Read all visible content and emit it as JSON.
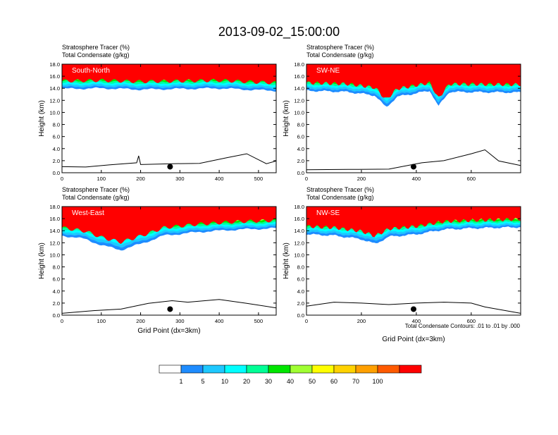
{
  "title": "2013-09-02_15:00:00",
  "colors": {
    "fill": [
      "#ffffff",
      "#1e8cff",
      "#1ec8ff",
      "#00ffff",
      "#00ff96",
      "#00e600",
      "#a0ff32",
      "#ffff00",
      "#ffd200",
      "#ffa000",
      "#ff5a00",
      "#ff0000"
    ]
  },
  "colorbar": {
    "labels": [
      "1",
      "5",
      "10",
      "20",
      "30",
      "40",
      "50",
      "60",
      "70",
      "100"
    ]
  },
  "contour_note": "Total Condensate Contours: .01 to .01 by .000",
  "chart_data": [
    {
      "type": "heatmap",
      "panel": "South-North",
      "label": "South-North",
      "title_line1": "Stratosphere Tracer   (%)",
      "title_line2": "Total Condensate   (g/kg)",
      "ylabel": "Height (km)",
      "xlabel": "",
      "xlim": [
        0,
        545
      ],
      "ylim": [
        0,
        18
      ],
      "xticks": [
        0,
        100,
        200,
        300,
        400,
        500
      ],
      "yticks": [
        "0.0",
        "2.0",
        "4.0",
        "6.0",
        "8.0",
        "10.0",
        "12.0",
        "14.0",
        "16.0",
        "18.0"
      ],
      "tracer_base_km": [
        [
          0,
          13.9
        ],
        [
          100,
          14.0
        ],
        [
          200,
          13.8
        ],
        [
          300,
          13.9
        ],
        [
          400,
          14.0
        ],
        [
          500,
          13.7
        ],
        [
          545,
          13.6
        ]
      ],
      "terrain_km": [
        [
          0,
          1.0
        ],
        [
          60,
          0.8
        ],
        [
          120,
          1.3
        ],
        [
          190,
          1.5
        ],
        [
          195,
          2.8
        ],
        [
          200,
          1.2
        ],
        [
          280,
          1.5
        ],
        [
          350,
          1.4
        ],
        [
          420,
          2.5
        ],
        [
          470,
          3.0
        ],
        [
          520,
          1.5
        ],
        [
          545,
          1.8
        ]
      ],
      "marker": [
        275,
        1.0
      ]
    },
    {
      "type": "heatmap",
      "panel": "SW-NE",
      "label": "SW-NE",
      "title_line1": "Stratosphere Tracer   (%)",
      "title_line2": "Total Condensate   (g/kg)",
      "ylabel": "Height (km)",
      "xlabel": "",
      "xlim": [
        0,
        780
      ],
      "ylim": [
        0,
        18
      ],
      "xticks": [
        0,
        200,
        400,
        600
      ],
      "yticks": [
        "0.0",
        "2.0",
        "4.0",
        "6.0",
        "8.0",
        "10.0",
        "12.0",
        "14.0",
        "16.0",
        "18.0"
      ],
      "tracer_base_km": [
        [
          0,
          13.6
        ],
        [
          150,
          13.4
        ],
        [
          250,
          12.8
        ],
        [
          290,
          10.8
        ],
        [
          330,
          12.6
        ],
        [
          450,
          13.6
        ],
        [
          480,
          11.0
        ],
        [
          520,
          13.4
        ],
        [
          780,
          13.3
        ]
      ],
      "terrain_km": [
        [
          0,
          0.5
        ],
        [
          150,
          0.4
        ],
        [
          300,
          0.6
        ],
        [
          420,
          1.5
        ],
        [
          500,
          2.0
        ],
        [
          600,
          3.0
        ],
        [
          650,
          3.8
        ],
        [
          700,
          1.8
        ],
        [
          780,
          1.2
        ]
      ],
      "marker": [
        390,
        1.0
      ]
    },
    {
      "type": "heatmap",
      "panel": "West-East",
      "label": "West-East",
      "title_line1": "Stratosphere Tracer   (%)",
      "title_line2": "Total Condensate   (g/kg)",
      "ylabel": "Height (km)",
      "xlabel": "Grid Point (dx=3km)",
      "xlim": [
        0,
        545
      ],
      "ylim": [
        0,
        18
      ],
      "xticks": [
        0,
        100,
        200,
        300,
        400,
        500
      ],
      "yticks": [
        "0.0",
        "2.0",
        "4.0",
        "6.0",
        "8.0",
        "10.0",
        "12.0",
        "14.0",
        "16.0",
        "18.0"
      ],
      "tracer_base_km": [
        [
          0,
          13.2
        ],
        [
          60,
          12.6
        ],
        [
          100,
          11.6
        ],
        [
          150,
          10.8
        ],
        [
          200,
          11.8
        ],
        [
          260,
          13.2
        ],
        [
          350,
          13.8
        ],
        [
          450,
          14.2
        ],
        [
          545,
          14.4
        ]
      ],
      "terrain_km": [
        [
          0,
          0.3
        ],
        [
          80,
          0.6
        ],
        [
          150,
          1.0
        ],
        [
          220,
          1.8
        ],
        [
          280,
          2.4
        ],
        [
          320,
          2.0
        ],
        [
          400,
          2.6
        ],
        [
          470,
          1.8
        ],
        [
          545,
          1.2
        ]
      ],
      "marker": [
        275,
        1.0
      ]
    },
    {
      "type": "heatmap",
      "panel": "NW-SE",
      "label": "NW-SE",
      "title_line1": "Stratosphere Tracer   (%)",
      "title_line2": "Total Condensate   (g/kg)",
      "ylabel": "Height (km)",
      "xlabel": "Grid Point (dx=3km)",
      "xlim": [
        0,
        780
      ],
      "ylim": [
        0,
        18
      ],
      "xticks": [
        0,
        200,
        400,
        600
      ],
      "yticks": [
        "0.0",
        "2.0",
        "4.0",
        "6.0",
        "8.0",
        "10.0",
        "12.0",
        "14.0",
        "16.0",
        "18.0"
      ],
      "tracer_base_km": [
        [
          0,
          13.4
        ],
        [
          100,
          13.2
        ],
        [
          200,
          12.6
        ],
        [
          250,
          11.8
        ],
        [
          300,
          13.0
        ],
        [
          400,
          13.4
        ],
        [
          500,
          14.2
        ],
        [
          600,
          14.4
        ],
        [
          780,
          14.6
        ]
      ],
      "terrain_km": [
        [
          0,
          1.5
        ],
        [
          100,
          2.0
        ],
        [
          200,
          2.0
        ],
        [
          300,
          1.6
        ],
        [
          400,
          2.0
        ],
        [
          500,
          2.0
        ],
        [
          600,
          2.0
        ],
        [
          650,
          1.2
        ],
        [
          780,
          0.3
        ]
      ],
      "marker": [
        390,
        1.0
      ]
    }
  ]
}
